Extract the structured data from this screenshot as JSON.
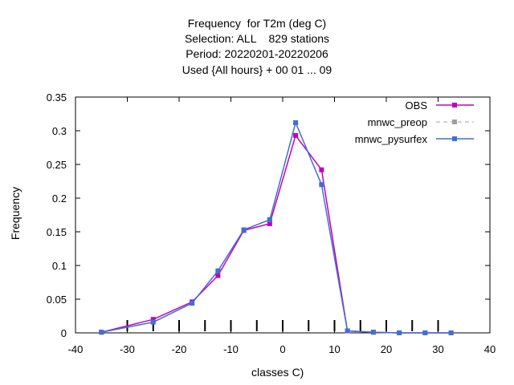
{
  "chart_data": {
    "type": "line",
    "title_lines": [
      "Frequency  for T2m (deg C)",
      "Selection: ALL    829 stations",
      "Period: 20220201-20220206",
      "Used {All hours} + 00 01 ... 09"
    ],
    "xlabel": "classes C)",
    "ylabel": "Frequency",
    "xlim": [
      -40,
      40
    ],
    "ylim": [
      0,
      0.35
    ],
    "xticks": [
      -40,
      -30,
      -20,
      -10,
      0,
      10,
      20,
      30,
      40
    ],
    "yticks": [
      0,
      0.05,
      0.1,
      0.15,
      0.2,
      0.25,
      0.3,
      0.35
    ],
    "grid": false,
    "legend_position": "top-right",
    "class_markers_x": [
      -30,
      -25,
      -20,
      -15,
      -10,
      -5,
      0,
      5,
      10,
      15,
      20,
      25,
      30
    ],
    "x": [
      -35,
      -27.5,
      -25,
      -17.5,
      -12.5,
      -7.5,
      -2.5,
      2.5,
      7.5,
      12.5,
      17.5,
      22.5,
      27.5,
      32.5
    ],
    "series": [
      {
        "name": "OBS",
        "color": "#c000c0",
        "style": "solid",
        "x": [
          -35,
          -25,
          -17.5,
          -12.5,
          -7.5,
          -2.5,
          2.5,
          7.5,
          12.5,
          17.5,
          22.5,
          27.5,
          32.5
        ],
        "values": [
          0.001,
          0.02,
          0.046,
          0.085,
          0.152,
          0.162,
          0.293,
          0.242,
          0.003,
          0.001,
          0.0,
          0.0,
          0.0
        ]
      },
      {
        "name": "mnwc_preop",
        "color": "#a0a0a0",
        "style": "dashed",
        "x": [
          -35,
          -25,
          -17.5,
          -12.5,
          -7.5,
          -2.5,
          2.5,
          7.5,
          12.5,
          17.5,
          22.5,
          27.5,
          32.5
        ],
        "values": [
          0.001,
          0.016,
          0.044,
          0.092,
          0.153,
          0.168,
          0.312,
          0.22,
          0.003,
          0.001,
          0.0,
          0.0,
          0.0
        ]
      },
      {
        "name": "mnwc_pysurfex",
        "color": "#4070d0",
        "style": "solid",
        "x": [
          -35,
          -25,
          -17.5,
          -12.5,
          -7.5,
          -2.5,
          2.5,
          7.5,
          12.5,
          17.5,
          22.5,
          27.5,
          32.5
        ],
        "values": [
          0.001,
          0.016,
          0.044,
          0.092,
          0.153,
          0.168,
          0.312,
          0.22,
          0.003,
          0.001,
          0.0,
          0.0,
          0.0
        ]
      }
    ]
  }
}
